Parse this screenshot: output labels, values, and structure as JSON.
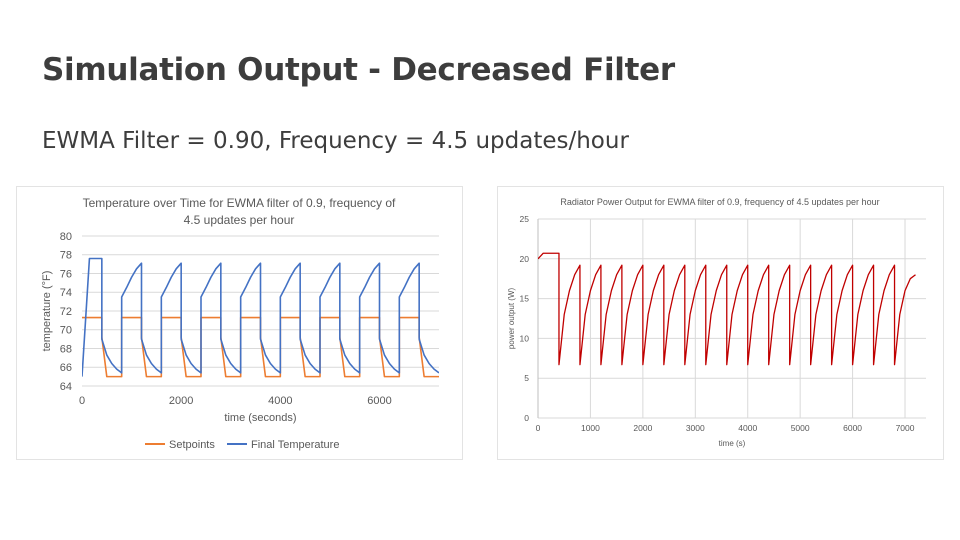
{
  "slide": {
    "title": "Simulation Output - Decreased Filter",
    "subtitle": "EWMA Filter = 0.90, Frequency = 4.5 updates/hour"
  },
  "colors": {
    "setpoint": "#ed7d31",
    "temperature": "#4472c4",
    "power": "#c00000",
    "grid": "#d9d9d9"
  },
  "chart_data": [
    {
      "type": "line",
      "title": "Temperature over Time for EWMA filter of 0.9, frequency of 4.5 updates per hour",
      "title_lines": [
        "Temperature over Time for EWMA filter of 0.9, frequency of",
        "4.5 updates per hour"
      ],
      "xlabel": "time (seconds)",
      "ylabel": "temperature (°F)",
      "xlim": [
        0,
        7200
      ],
      "ylim": [
        64,
        80
      ],
      "xticks": [
        0,
        2000,
        4000,
        6000
      ],
      "yticks": [
        64,
        66,
        68,
        70,
        72,
        74,
        76,
        78,
        80
      ],
      "grid": true,
      "legend_position": "bottom",
      "series": [
        {
          "name": "Setpoints",
          "color": "#ed7d31",
          "points": [
            [
              0,
              71.3
            ],
            [
              400,
              71.3
            ],
            [
              400,
              69.2
            ],
            [
              500,
              65
            ],
            [
              800,
              65
            ],
            [
              800,
              71.3
            ],
            [
              1200,
              71.3
            ],
            [
              1200,
              69.2
            ],
            [
              1300,
              65
            ],
            [
              1600,
              65
            ],
            [
              1600,
              71.3
            ],
            [
              2000,
              71.3
            ],
            [
              2000,
              69.2
            ],
            [
              2100,
              65
            ],
            [
              2400,
              65
            ],
            [
              2400,
              71.3
            ],
            [
              2800,
              71.3
            ],
            [
              2800,
              69.2
            ],
            [
              2900,
              65
            ],
            [
              3200,
              65
            ],
            [
              3200,
              71.3
            ],
            [
              3600,
              71.3
            ],
            [
              3600,
              69.2
            ],
            [
              3700,
              65
            ],
            [
              4000,
              65
            ],
            [
              4000,
              71.3
            ],
            [
              4400,
              71.3
            ],
            [
              4400,
              69.2
            ],
            [
              4500,
              65
            ],
            [
              4800,
              65
            ],
            [
              4800,
              71.3
            ],
            [
              5200,
              71.3
            ],
            [
              5200,
              69.2
            ],
            [
              5300,
              65
            ],
            [
              5600,
              65
            ],
            [
              5600,
              71.3
            ],
            [
              6000,
              71.3
            ],
            [
              6000,
              69.2
            ],
            [
              6100,
              65
            ],
            [
              6400,
              65
            ],
            [
              6400,
              71.3
            ],
            [
              6800,
              71.3
            ],
            [
              6800,
              69.2
            ],
            [
              6900,
              65
            ],
            [
              7200,
              65
            ]
          ]
        },
        {
          "name": "Final Temperature",
          "color": "#4472c4",
          "points": [
            [
              0,
              65
            ],
            [
              150,
              77.6
            ],
            [
              400,
              77.6
            ],
            [
              400,
              69
            ],
            [
              500,
              67.3
            ],
            [
              600,
              66.4
            ],
            [
              700,
              65.8
            ],
            [
              800,
              65.4
            ],
            [
              800,
              73.5
            ],
            [
              900,
              74.5
            ],
            [
              1000,
              75.6
            ],
            [
              1100,
              76.5
            ],
            [
              1200,
              77.1
            ],
            [
              1200,
              69
            ],
            [
              1300,
              67.3
            ],
            [
              1400,
              66.4
            ],
            [
              1500,
              65.8
            ],
            [
              1600,
              65.4
            ],
            [
              1600,
              73.5
            ],
            [
              1700,
              74.5
            ],
            [
              1800,
              75.6
            ],
            [
              1900,
              76.5
            ],
            [
              2000,
              77.1
            ],
            [
              2000,
              69
            ],
            [
              2100,
              67.3
            ],
            [
              2200,
              66.4
            ],
            [
              2300,
              65.8
            ],
            [
              2400,
              65.4
            ],
            [
              2400,
              73.5
            ],
            [
              2500,
              74.5
            ],
            [
              2600,
              75.6
            ],
            [
              2700,
              76.5
            ],
            [
              2800,
              77.1
            ],
            [
              2800,
              69
            ],
            [
              2900,
              67.3
            ],
            [
              3000,
              66.4
            ],
            [
              3100,
              65.8
            ],
            [
              3200,
              65.4
            ],
            [
              3200,
              73.5
            ],
            [
              3300,
              74.5
            ],
            [
              3400,
              75.6
            ],
            [
              3500,
              76.5
            ],
            [
              3600,
              77.1
            ],
            [
              3600,
              69
            ],
            [
              3700,
              67.3
            ],
            [
              3800,
              66.4
            ],
            [
              3900,
              65.8
            ],
            [
              4000,
              65.4
            ],
            [
              4000,
              73.5
            ],
            [
              4100,
              74.5
            ],
            [
              4200,
              75.6
            ],
            [
              4300,
              76.5
            ],
            [
              4400,
              77.1
            ],
            [
              4400,
              69
            ],
            [
              4500,
              67.3
            ],
            [
              4600,
              66.4
            ],
            [
              4700,
              65.8
            ],
            [
              4800,
              65.4
            ],
            [
              4800,
              73.5
            ],
            [
              4900,
              74.5
            ],
            [
              5000,
              75.6
            ],
            [
              5100,
              76.5
            ],
            [
              5200,
              77.1
            ],
            [
              5200,
              69
            ],
            [
              5300,
              67.3
            ],
            [
              5400,
              66.4
            ],
            [
              5500,
              65.8
            ],
            [
              5600,
              65.4
            ],
            [
              5600,
              73.5
            ],
            [
              5700,
              74.5
            ],
            [
              5800,
              75.6
            ],
            [
              5900,
              76.5
            ],
            [
              6000,
              77.1
            ],
            [
              6000,
              69
            ],
            [
              6100,
              67.3
            ],
            [
              6200,
              66.4
            ],
            [
              6300,
              65.8
            ],
            [
              6400,
              65.4
            ],
            [
              6400,
              73.5
            ],
            [
              6500,
              74.5
            ],
            [
              6600,
              75.6
            ],
            [
              6700,
              76.5
            ],
            [
              6800,
              77.1
            ],
            [
              6800,
              69
            ],
            [
              6900,
              67.3
            ],
            [
              7000,
              66.4
            ],
            [
              7100,
              65.8
            ],
            [
              7200,
              65.4
            ]
          ]
        }
      ]
    },
    {
      "type": "line",
      "title": "Radiator Power Output for EWMA filter of 0.9, frequency of 4.5 updates per hour",
      "title_lines": [
        "Radiator Power Output for EWMA filter of 0.9, frequency of 4.5 updates per hour"
      ],
      "xlabel": "time (s)",
      "ylabel": "power output (W)",
      "xlim": [
        0,
        7400
      ],
      "ylim": [
        0,
        25
      ],
      "xticks": [
        0,
        1000,
        2000,
        3000,
        4000,
        5000,
        6000,
        7000
      ],
      "yticks": [
        0,
        5,
        10,
        15,
        20,
        25
      ],
      "grid": true,
      "legend_position": "none",
      "series": [
        {
          "name": "",
          "color": "#c00000",
          "points": [
            [
              0,
              20
            ],
            [
              100,
              20.7
            ],
            [
              400,
              20.7
            ],
            [
              400,
              6.7
            ],
            [
              500,
              13
            ],
            [
              600,
              16
            ],
            [
              700,
              18
            ],
            [
              800,
              19.2
            ],
            [
              800,
              6.7
            ],
            [
              900,
              13
            ],
            [
              1000,
              16
            ],
            [
              1100,
              18
            ],
            [
              1200,
              19.2
            ],
            [
              1200,
              6.7
            ],
            [
              1300,
              13
            ],
            [
              1400,
              16
            ],
            [
              1500,
              18
            ],
            [
              1600,
              19.2
            ],
            [
              1600,
              6.7
            ],
            [
              1700,
              13
            ],
            [
              1800,
              16
            ],
            [
              1900,
              18
            ],
            [
              2000,
              19.2
            ],
            [
              2000,
              6.7
            ],
            [
              2100,
              13
            ],
            [
              2200,
              16
            ],
            [
              2300,
              18
            ],
            [
              2400,
              19.2
            ],
            [
              2400,
              6.7
            ],
            [
              2500,
              13
            ],
            [
              2600,
              16
            ],
            [
              2700,
              18
            ],
            [
              2800,
              19.2
            ],
            [
              2800,
              6.7
            ],
            [
              2900,
              13
            ],
            [
              3000,
              16
            ],
            [
              3100,
              18
            ],
            [
              3200,
              19.2
            ],
            [
              3200,
              6.7
            ],
            [
              3300,
              13
            ],
            [
              3400,
              16
            ],
            [
              3500,
              18
            ],
            [
              3600,
              19.2
            ],
            [
              3600,
              6.7
            ],
            [
              3700,
              13
            ],
            [
              3800,
              16
            ],
            [
              3900,
              18
            ],
            [
              4000,
              19.2
            ],
            [
              4000,
              6.7
            ],
            [
              4100,
              13
            ],
            [
              4200,
              16
            ],
            [
              4300,
              18
            ],
            [
              4400,
              19.2
            ],
            [
              4400,
              6.7
            ],
            [
              4500,
              13
            ],
            [
              4600,
              16
            ],
            [
              4700,
              18
            ],
            [
              4800,
              19.2
            ],
            [
              4800,
              6.7
            ],
            [
              4900,
              13
            ],
            [
              5000,
              16
            ],
            [
              5100,
              18
            ],
            [
              5200,
              19.2
            ],
            [
              5200,
              6.7
            ],
            [
              5300,
              13
            ],
            [
              5400,
              16
            ],
            [
              5500,
              18
            ],
            [
              5600,
              19.2
            ],
            [
              5600,
              6.7
            ],
            [
              5700,
              13
            ],
            [
              5800,
              16
            ],
            [
              5900,
              18
            ],
            [
              6000,
              19.2
            ],
            [
              6000,
              6.7
            ],
            [
              6100,
              13
            ],
            [
              6200,
              16
            ],
            [
              6300,
              18
            ],
            [
              6400,
              19.2
            ],
            [
              6400,
              6.7
            ],
            [
              6500,
              13
            ],
            [
              6600,
              16
            ],
            [
              6700,
              18
            ],
            [
              6800,
              19.2
            ],
            [
              6800,
              6.7
            ],
            [
              6900,
              13
            ],
            [
              7000,
              16
            ],
            [
              7100,
              17.5
            ],
            [
              7200,
              18
            ]
          ]
        }
      ]
    }
  ]
}
